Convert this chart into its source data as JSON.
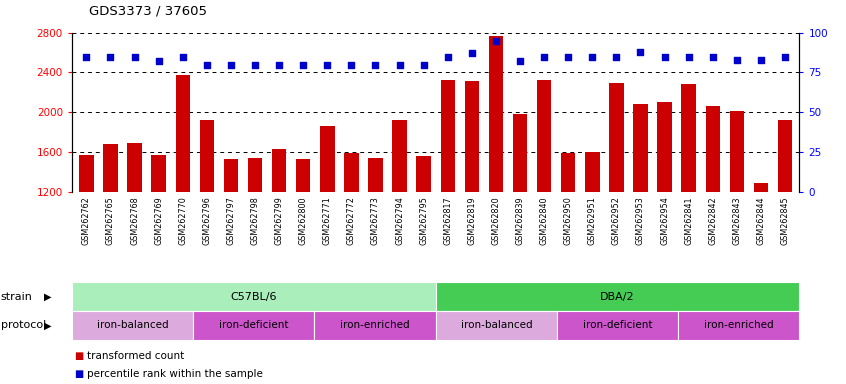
{
  "title": "GDS3373 / 37605",
  "samples": [
    "GSM262762",
    "GSM262765",
    "GSM262768",
    "GSM262769",
    "GSM262770",
    "GSM262796",
    "GSM262797",
    "GSM262798",
    "GSM262799",
    "GSM262800",
    "GSM262771",
    "GSM262772",
    "GSM262773",
    "GSM262794",
    "GSM262795",
    "GSM262817",
    "GSM262819",
    "GSM262820",
    "GSM262839",
    "GSM262840",
    "GSM262950",
    "GSM262951",
    "GSM262952",
    "GSM262953",
    "GSM262954",
    "GSM262841",
    "GSM262842",
    "GSM262843",
    "GSM262844",
    "GSM262845"
  ],
  "transformed_counts": [
    1570,
    1680,
    1690,
    1570,
    2370,
    1920,
    1530,
    1540,
    1630,
    1530,
    1860,
    1590,
    1540,
    1920,
    1560,
    2320,
    2310,
    2770,
    1980,
    2320,
    1590,
    1600,
    2290,
    2080,
    2100,
    2280,
    2060,
    2010,
    1290,
    1920
  ],
  "percentile_ranks": [
    85,
    85,
    85,
    82,
    85,
    80,
    80,
    80,
    80,
    80,
    80,
    80,
    80,
    80,
    80,
    85,
    87,
    95,
    82,
    85,
    85,
    85,
    85,
    88,
    85,
    85,
    85,
    83,
    83,
    85
  ],
  "bar_color": "#cc0000",
  "dot_color": "#0000cc",
  "ylim_left": [
    1200,
    2800
  ],
  "ylim_right": [
    0,
    100
  ],
  "yticks_left": [
    1200,
    1600,
    2000,
    2400,
    2800
  ],
  "yticks_right": [
    0,
    25,
    50,
    75,
    100
  ],
  "grid_values": [
    1600,
    2000,
    2400
  ],
  "strain_groups": [
    {
      "label": "C57BL/6",
      "start": 0,
      "end": 15,
      "color": "#aaeebb"
    },
    {
      "label": "DBA/2",
      "start": 15,
      "end": 30,
      "color": "#44cc55"
    }
  ],
  "protocol_groups": [
    {
      "label": "iron-balanced",
      "start": 0,
      "end": 5,
      "color": "#ddaadd"
    },
    {
      "label": "iron-deficient",
      "start": 5,
      "end": 10,
      "color": "#cc55cc"
    },
    {
      "label": "iron-enriched",
      "start": 10,
      "end": 15,
      "color": "#cc55cc"
    },
    {
      "label": "iron-balanced",
      "start": 15,
      "end": 20,
      "color": "#ddaadd"
    },
    {
      "label": "iron-deficient",
      "start": 20,
      "end": 25,
      "color": "#cc55cc"
    },
    {
      "label": "iron-enriched",
      "start": 25,
      "end": 30,
      "color": "#cc55cc"
    }
  ],
  "xtick_bg_color": "#cccccc",
  "plot_bg": "#ffffff",
  "fig_bg": "#ffffff"
}
